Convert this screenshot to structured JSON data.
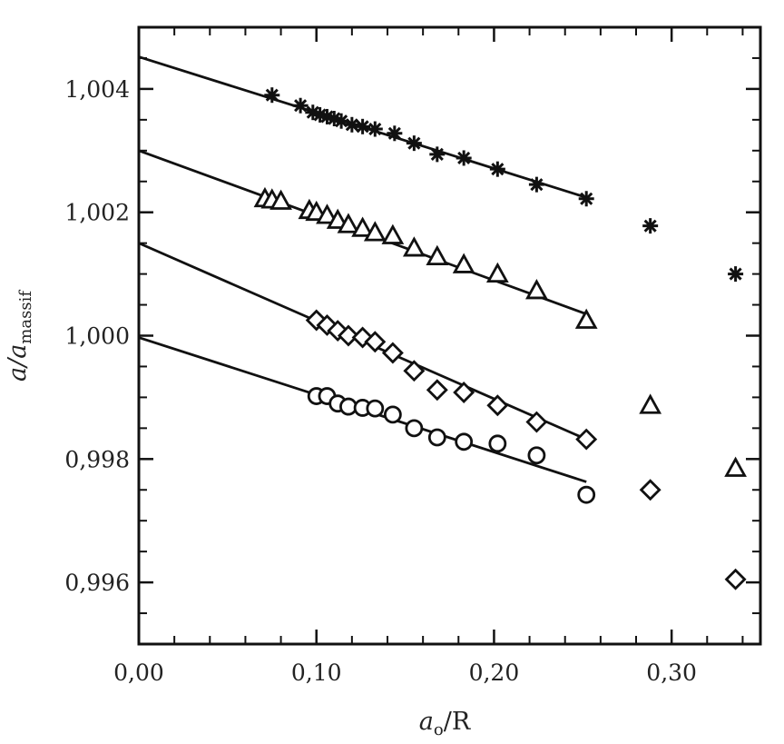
{
  "chart_data": {
    "type": "scatter",
    "xlabel": "a",
    "xlabel_sub": "o",
    "xlabel_suffix": "/R",
    "ylabel": "a/a",
    "ylabel_sub": "massif",
    "xlim": [
      0.0,
      0.35
    ],
    "ylim": [
      0.995,
      1.005
    ],
    "x_ticks": [
      {
        "value": 0.0,
        "label": "0,00"
      },
      {
        "value": 0.1,
        "label": "0,10"
      },
      {
        "value": 0.2,
        "label": "0,20"
      },
      {
        "value": 0.3,
        "label": "0,30"
      }
    ],
    "x_minor_ticks": [
      0.02,
      0.04,
      0.06,
      0.08,
      0.12,
      0.14,
      0.16,
      0.18,
      0.22,
      0.24,
      0.26,
      0.28,
      0.32,
      0.34
    ],
    "y_ticks": [
      {
        "value": 0.996,
        "label": "0,996"
      },
      {
        "value": 0.998,
        "label": "0,998"
      },
      {
        "value": 1.0,
        "label": "1,000"
      },
      {
        "value": 1.002,
        "label": "1,002"
      },
      {
        "value": 1.004,
        "label": "1,004"
      }
    ],
    "y_minor_ticks": [
      0.9955,
      0.9965,
      0.997,
      0.9975,
      0.9985,
      0.999,
      0.9995,
      1.0005,
      1.001,
      1.0015,
      1.0025,
      1.003,
      1.0035,
      1.0045
    ],
    "grid": false,
    "series": [
      {
        "marker": "asterisk",
        "points": [
          [
            0.075,
            1.0039
          ],
          [
            0.091,
            1.00373
          ],
          [
            0.098,
            1.00362
          ],
          [
            0.102,
            1.00358
          ],
          [
            0.106,
            1.00355
          ],
          [
            0.11,
            1.00352
          ],
          [
            0.114,
            1.00348
          ],
          [
            0.12,
            1.00342
          ],
          [
            0.126,
            1.00339
          ],
          [
            0.133,
            1.00335
          ],
          [
            0.144,
            1.00328
          ],
          [
            0.155,
            1.00312
          ],
          [
            0.168,
            1.00294
          ],
          [
            0.183,
            1.00288
          ],
          [
            0.202,
            1.0027
          ],
          [
            0.224,
            1.00245
          ],
          [
            0.252,
            1.00222
          ],
          [
            0.288,
            1.00178
          ],
          [
            0.336,
            1.001
          ]
        ],
        "fit": {
          "x": [
            0.0,
            0.252
          ],
          "y": [
            1.00452,
            1.00224
          ]
        }
      },
      {
        "marker": "triangle",
        "points": [
          [
            0.071,
            1.00222
          ],
          [
            0.075,
            1.0022
          ],
          [
            0.08,
            1.00218
          ],
          [
            0.096,
            1.00203
          ],
          [
            0.1,
            1.002
          ],
          [
            0.106,
            1.00195
          ],
          [
            0.112,
            1.00187
          ],
          [
            0.118,
            1.0018
          ],
          [
            0.126,
            1.00174
          ],
          [
            0.133,
            1.00167
          ],
          [
            0.143,
            1.00162
          ],
          [
            0.155,
            1.00142
          ],
          [
            0.168,
            1.00128
          ],
          [
            0.183,
            1.00115
          ],
          [
            0.202,
            1.001
          ],
          [
            0.224,
            1.00073
          ],
          [
            0.252,
            1.00025
          ],
          [
            0.288,
            0.99887
          ],
          [
            0.336,
            0.99785
          ]
        ],
        "fit": {
          "x": [
            0.0,
            0.252
          ],
          "y": [
            1.003,
            1.00035
          ]
        }
      },
      {
        "marker": "diamond",
        "points": [
          [
            0.1,
            1.00025
          ],
          [
            0.106,
            1.00017
          ],
          [
            0.112,
            1.00008
          ],
          [
            0.118,
            1.0
          ],
          [
            0.126,
            0.99997
          ],
          [
            0.133,
            0.9999
          ],
          [
            0.143,
            0.99972
          ],
          [
            0.155,
            0.99943
          ],
          [
            0.168,
            0.99912
          ],
          [
            0.183,
            0.99908
          ],
          [
            0.202,
            0.99887
          ],
          [
            0.224,
            0.9986
          ],
          [
            0.252,
            0.99832
          ],
          [
            0.288,
            0.9975
          ],
          [
            0.336,
            0.99605
          ]
        ],
        "fit": {
          "x": [
            0.0,
            0.252
          ],
          "y": [
            1.0015,
            0.99832
          ]
        }
      },
      {
        "marker": "circle",
        "points": [
          [
            0.1,
            0.99902
          ],
          [
            0.106,
            0.99902
          ],
          [
            0.112,
            0.9989
          ],
          [
            0.118,
            0.99885
          ],
          [
            0.126,
            0.99883
          ],
          [
            0.133,
            0.99882
          ],
          [
            0.143,
            0.99872
          ],
          [
            0.155,
            0.9985
          ],
          [
            0.168,
            0.99835
          ],
          [
            0.183,
            0.99828
          ],
          [
            0.202,
            0.99825
          ],
          [
            0.224,
            0.99806
          ],
          [
            0.252,
            0.99742
          ]
        ],
        "fit": {
          "x": [
            0.0,
            0.252
          ],
          "y": [
            0.99997,
            0.99763
          ]
        }
      }
    ]
  }
}
